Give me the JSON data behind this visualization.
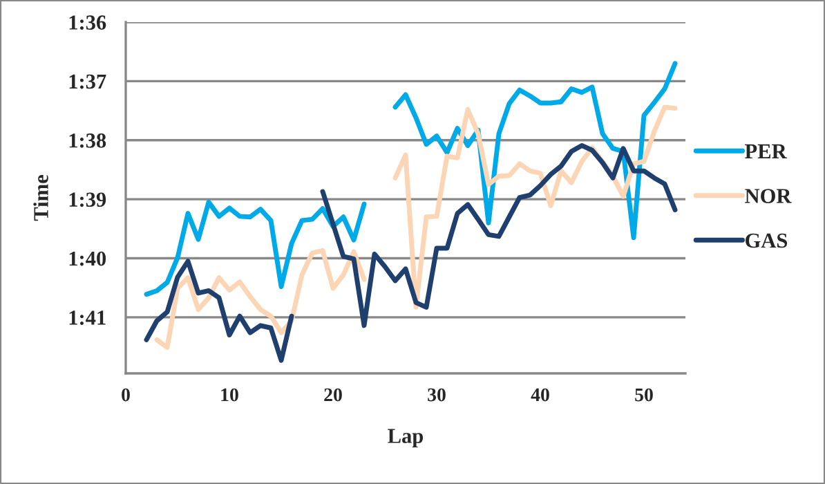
{
  "chart_data": {
    "type": "line",
    "xlabel": "Lap",
    "ylabel": "Time",
    "x": [
      2,
      3,
      4,
      5,
      6,
      7,
      8,
      9,
      10,
      11,
      12,
      13,
      14,
      15,
      16,
      17,
      18,
      19,
      20,
      21,
      22,
      23,
      24,
      25,
      26,
      27,
      28,
      29,
      30,
      31,
      32,
      33,
      34,
      35,
      36,
      37,
      38,
      39,
      40,
      41,
      42,
      43,
      44,
      45,
      46,
      47,
      48,
      49,
      50,
      51,
      52,
      53
    ],
    "series": [
      {
        "name": "PER",
        "color": "#00a9e8",
        "values": [
          100.61,
          100.55,
          100.41,
          99.99,
          99.24,
          99.68,
          99.05,
          99.29,
          99.15,
          99.29,
          99.3,
          99.17,
          99.36,
          100.48,
          99.75,
          99.36,
          99.34,
          99.16,
          99.46,
          99.3,
          99.69,
          99.08,
          null,
          null,
          97.44,
          97.23,
          97.62,
          98.07,
          97.93,
          98.21,
          97.8,
          98.09,
          97.83,
          99.4,
          97.89,
          97.38,
          97.15,
          97.25,
          97.37,
          97.37,
          97.35,
          97.13,
          97.19,
          97.1,
          97.89,
          98.14,
          98.19,
          99.65,
          97.58,
          97.36,
          97.13,
          96.7
        ]
      },
      {
        "name": "NOR",
        "color": "#fcd5b5",
        "values": [
          null,
          101.38,
          101.51,
          100.51,
          100.33,
          100.87,
          100.67,
          100.33,
          100.54,
          100.4,
          100.65,
          100.87,
          100.98,
          101.26,
          101.06,
          100.28,
          99.91,
          99.87,
          100.51,
          100.28,
          99.89,
          100.36,
          null,
          null,
          98.64,
          98.25,
          100.83,
          99.3,
          99.29,
          98.27,
          98.3,
          97.48,
          97.89,
          98.75,
          98.61,
          98.6,
          98.4,
          98.52,
          98.56,
          99.11,
          98.52,
          98.72,
          98.36,
          98.13,
          98.36,
          98.61,
          98.95,
          98.4,
          98.36,
          97.85,
          97.44,
          97.46
        ]
      },
      {
        "name": "GAS",
        "color": "#1f3f6e",
        "values": [
          101.38,
          101.06,
          100.91,
          100.32,
          100.05,
          100.59,
          100.55,
          100.67,
          101.3,
          100.98,
          101.26,
          101.14,
          101.18,
          101.73,
          100.98,
          null,
          null,
          98.87,
          99.42,
          99.97,
          100.01,
          101.14,
          99.93,
          100.14,
          100.38,
          100.18,
          100.75,
          100.83,
          99.83,
          99.83,
          99.24,
          99.09,
          99.34,
          99.6,
          99.63,
          99.3,
          98.97,
          98.93,
          98.77,
          98.58,
          98.44,
          98.19,
          98.09,
          98.17,
          98.38,
          98.64,
          98.14,
          98.52,
          98.52,
          98.64,
          98.74,
          99.18
        ]
      }
    ],
    "xlim": [
      0,
      54
    ],
    "xticks": [
      0,
      10,
      20,
      30,
      40,
      50
    ],
    "ylim": [
      101.95,
      96
    ],
    "yticks": [
      {
        "value": 96,
        "label": "1:36"
      },
      {
        "value": 97,
        "label": "1:37"
      },
      {
        "value": 98,
        "label": "1:38"
      },
      {
        "value": 99,
        "label": "1:39"
      },
      {
        "value": 100,
        "label": "1:40"
      },
      {
        "value": 101,
        "label": "1:41"
      }
    ],
    "grid": "y",
    "legend": "right",
    "line_style": "solid"
  }
}
